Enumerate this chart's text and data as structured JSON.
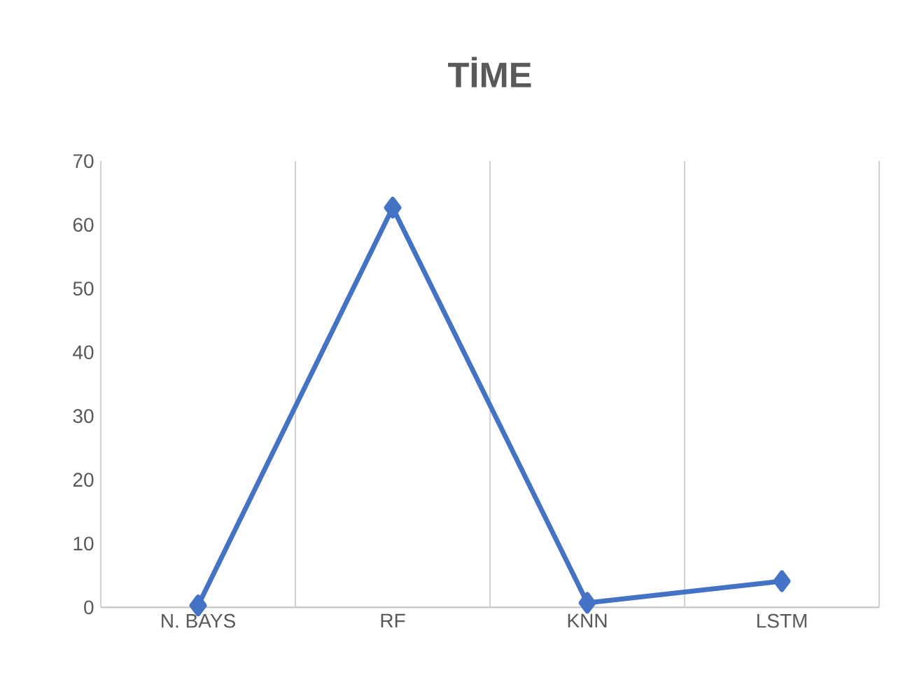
{
  "chart_data": {
    "type": "line",
    "title": "TİME",
    "categories": [
      "N. BAYS",
      "RF",
      "KNN",
      "LSTM"
    ],
    "series": [
      {
        "color": "#4472c4",
        "values": [
          0.3,
          62.7,
          0.7,
          4.1
        ]
      }
    ],
    "ylim": [
      0,
      70
    ],
    "yticks": [
      0,
      10,
      20,
      30,
      40,
      50,
      60,
      70
    ],
    "grid": "x",
    "marker": "diamond",
    "line_style": "solid"
  }
}
